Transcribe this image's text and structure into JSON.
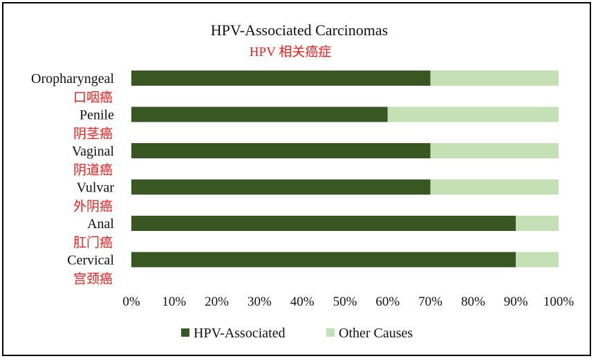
{
  "chart_data": {
    "type": "bar",
    "orientation": "horizontal",
    "stacked": true,
    "title": "HPV-Associated Carcinomas",
    "subtitle": "HPV 相关癌症",
    "categories": [
      {
        "en": "Oropharyngeal",
        "zh": "口咽癌"
      },
      {
        "en": "Penile",
        "zh": "阴茎癌"
      },
      {
        "en": "Vaginal",
        "zh": "阴道癌"
      },
      {
        "en": "Vulvar",
        "zh": "外阴癌"
      },
      {
        "en": "Anal",
        "zh": "肛门癌"
      },
      {
        "en": "Cervical",
        "zh": "宫颈癌"
      }
    ],
    "series": [
      {
        "name": "HPV-Associated",
        "color": "#385723",
        "values": [
          70,
          60,
          70,
          70,
          90,
          90
        ]
      },
      {
        "name": "Other Causes",
        "color": "#c5e0b4",
        "values": [
          30,
          40,
          30,
          30,
          10,
          10
        ]
      }
    ],
    "xlim": [
      0,
      100
    ],
    "xticks": [
      "0%",
      "10%",
      "20%",
      "30%",
      "40%",
      "50%",
      "60%",
      "70%",
      "80%",
      "90%",
      "100%"
    ],
    "grid": false,
    "legend_position": "bottom"
  }
}
